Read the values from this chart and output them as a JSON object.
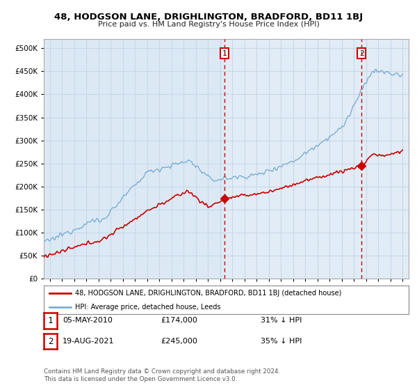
{
  "title": "48, HODGSON LANE, DRIGHLINGTON, BRADFORD, BD11 1BJ",
  "subtitle": "Price paid vs. HM Land Registry's House Price Index (HPI)",
  "background_color": "#ffffff",
  "plot_bg_color": "#dce9f5",
  "plot_bg_color2": "#e8f0fa",
  "grid_color": "#c8d8e8",
  "sale1_date": 2010.35,
  "sale1_price": 174000,
  "sale2_date": 2021.63,
  "sale2_price": 245000,
  "ylim": [
    0,
    520000
  ],
  "xlim": [
    1995.5,
    2025.5
  ],
  "legend_text1": "48, HODGSON LANE, DRIGHLINGTON, BRADFORD, BD11 1BJ (detached house)",
  "legend_text2": "HPI: Average price, detached house, Leeds",
  "table_row1": [
    "1",
    "05-MAY-2010",
    "£174,000",
    "31% ↓ HPI"
  ],
  "table_row2": [
    "2",
    "19-AUG-2021",
    "£245,000",
    "35% ↓ HPI"
  ],
  "footnote": "Contains HM Land Registry data © Crown copyright and database right 2024.\nThis data is licensed under the Open Government Licence v3.0.",
  "red_color": "#cc0000",
  "blue_color": "#7aafd4",
  "dashed_color": "#cc0000"
}
